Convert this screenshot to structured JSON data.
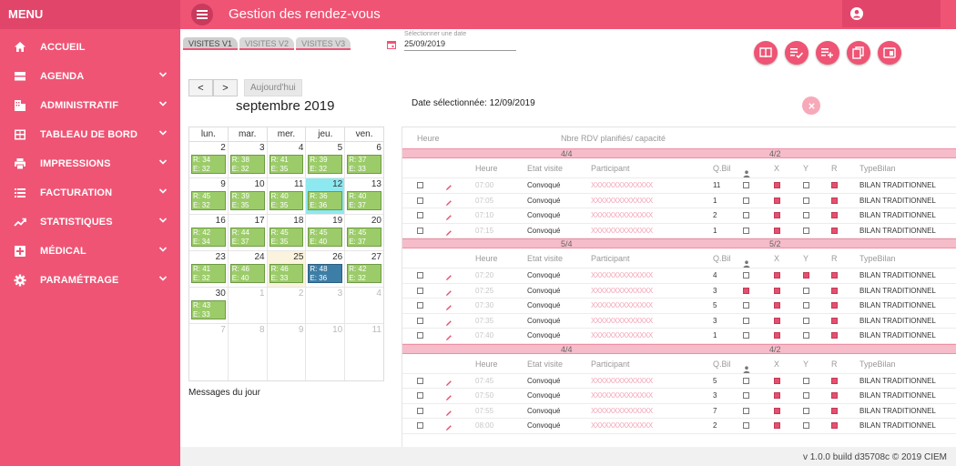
{
  "sidebar": {
    "menu_label": "MENU",
    "items": [
      {
        "label": "ACCUEIL",
        "icon": "home-icon",
        "chevron": false
      },
      {
        "label": "AGENDA",
        "icon": "agenda-icon",
        "chevron": true
      },
      {
        "label": "ADMINISTRATIF",
        "icon": "building-icon",
        "chevron": true
      },
      {
        "label": "TABLEAU DE BORD",
        "icon": "dashboard-icon",
        "chevron": true
      },
      {
        "label": "IMPRESSIONS",
        "icon": "printer-icon",
        "chevron": true
      },
      {
        "label": "FACTURATION",
        "icon": "list-icon",
        "chevron": true
      },
      {
        "label": "STATISTIQUES",
        "icon": "trending-icon",
        "chevron": true
      },
      {
        "label": "MÉDICAL",
        "icon": "medical-icon",
        "chevron": true
      },
      {
        "label": "PARAMÉTRAGE",
        "icon": "gear-icon",
        "chevron": true
      }
    ]
  },
  "header": {
    "title": "Gestion des rendez-vous"
  },
  "tabs": [
    "VISITES V1",
    "VISITES V2",
    "VISITES V3"
  ],
  "date_picker": {
    "label": "Sélectionner une date",
    "value": "25/09/2019"
  },
  "calendar": {
    "prev": "<",
    "next": ">",
    "today_label": "Aujourd'hui",
    "title": "septembre 2019",
    "weekdays": [
      "lun.",
      "mar.",
      "mer.",
      "jeu.",
      "ven."
    ],
    "weeks": [
      [
        {
          "n": "2",
          "r": "R: 34",
          "e": "E: 32"
        },
        {
          "n": "3",
          "r": "R: 38",
          "e": "E: 32"
        },
        {
          "n": "4",
          "r": "R: 41",
          "e": "E: 35"
        },
        {
          "n": "5",
          "r": "R: 39",
          "e": "E: 32"
        },
        {
          "n": "6",
          "r": "R: 37",
          "e": "E: 33"
        }
      ],
      [
        {
          "n": "9",
          "r": "R: 45",
          "e": "E: 32"
        },
        {
          "n": "10",
          "r": "R: 39",
          "e": "E: 35"
        },
        {
          "n": "11",
          "r": "R: 40",
          "e": "E: 35"
        },
        {
          "n": "12",
          "r": "R: 36",
          "e": "E: 36",
          "selected": true
        },
        {
          "n": "13",
          "r": "R: 40",
          "e": "E: 37"
        }
      ],
      [
        {
          "n": "16",
          "r": "R: 42",
          "e": "E: 34"
        },
        {
          "n": "17",
          "r": "R: 44",
          "e": "E: 37"
        },
        {
          "n": "18",
          "r": "R: 45",
          "e": "E: 35"
        },
        {
          "n": "19",
          "r": "R: 45",
          "e": "E: 40"
        },
        {
          "n": "20",
          "r": "R: 45",
          "e": "E: 37"
        }
      ],
      [
        {
          "n": "23",
          "r": "R: 41",
          "e": "E: 32"
        },
        {
          "n": "24",
          "r": "R: 46",
          "e": "E: 40"
        },
        {
          "n": "25",
          "r": "R: 46",
          "e": "E: 33",
          "today": true
        },
        {
          "n": "26",
          "r": "R: 48",
          "e": "E: 36",
          "blue": true
        },
        {
          "n": "27",
          "r": "R: 42",
          "e": "E: 32"
        }
      ],
      [
        {
          "n": "30",
          "r": "R: 43",
          "e": "E: 33"
        },
        {
          "n": "1",
          "other": true
        },
        {
          "n": "2",
          "other": true
        },
        {
          "n": "3",
          "other": true
        },
        {
          "n": "4",
          "other": true
        }
      ],
      [
        {
          "n": "7",
          "other": true
        },
        {
          "n": "8",
          "other": true
        },
        {
          "n": "9",
          "other": true
        },
        {
          "n": "10",
          "other": true
        },
        {
          "n": "11",
          "other": true
        }
      ]
    ]
  },
  "messages_label": "Messages du jour",
  "selected_date_text": "Date sélectionnée: 12/09/2019",
  "panel": {
    "head_heure": "Heure",
    "head_capacity": "Nbre RDV planifiés/ capacité",
    "columns": [
      "Heure",
      "Etat visite",
      "Participant",
      "Q.Bil",
      "X",
      "Y",
      "R",
      "TypeBilan"
    ],
    "groups": [
      {
        "cap1": "4/4",
        "cap2": "4/2",
        "rows": [
          {
            "heure": "07:00",
            "etat": "Convoqué",
            "part": "XXXXXXXXXXXXXX",
            "q": "11",
            "p": false,
            "x": true,
            "y": false,
            "r": true,
            "type": "BILAN TRADITIONNEL"
          },
          {
            "heure": "07:05",
            "etat": "Convoqué",
            "part": "XXXXXXXXXXXXXX",
            "q": "1",
            "p": false,
            "x": true,
            "y": false,
            "r": true,
            "type": "BILAN TRADITIONNEL"
          },
          {
            "heure": "07:10",
            "etat": "Convoqué",
            "part": "XXXXXXXXXXXXXX",
            "q": "2",
            "p": false,
            "x": true,
            "y": false,
            "r": true,
            "type": "BILAN TRADITIONNEL"
          },
          {
            "heure": "07:15",
            "etat": "Convoqué",
            "part": "XXXXXXXXXXXXXX",
            "q": "1",
            "p": false,
            "x": true,
            "y": false,
            "r": true,
            "type": "BILAN TRADITIONNEL"
          }
        ]
      },
      {
        "cap1": "5/4",
        "cap2": "5/2",
        "rows": [
          {
            "heure": "07:20",
            "etat": "Convoqué",
            "part": "XXXXXXXXXXXXXX",
            "q": "4",
            "p": false,
            "x": true,
            "y": true,
            "r": true,
            "type": "BILAN TRADITIONNEL"
          },
          {
            "heure": "07:25",
            "etat": "Convoqué",
            "part": "XXXXXXXXXXXXXX",
            "q": "3",
            "p": true,
            "x": true,
            "y": false,
            "r": true,
            "type": "BILAN TRADITIONNEL"
          },
          {
            "heure": "07:30",
            "etat": "Convoqué",
            "part": "XXXXXXXXXXXXXX",
            "q": "5",
            "p": false,
            "x": true,
            "y": false,
            "r": true,
            "type": "BILAN TRADITIONNEL"
          },
          {
            "heure": "07:35",
            "etat": "Convoqué",
            "part": "XXXXXXXXXXXXXX",
            "q": "3",
            "p": false,
            "x": true,
            "y": false,
            "r": true,
            "type": "BILAN TRADITIONNEL"
          },
          {
            "heure": "07:40",
            "etat": "Convoqué",
            "part": "XXXXXXXXXXXXXX",
            "q": "1",
            "p": false,
            "x": true,
            "y": false,
            "r": true,
            "type": "BILAN TRADITIONNEL"
          }
        ]
      },
      {
        "cap1": "4/4",
        "cap2": "4/2",
        "rows": [
          {
            "heure": "07:45",
            "etat": "Convoqué",
            "part": "XXXXXXXXXXXXXX",
            "q": "5",
            "p": false,
            "x": true,
            "y": false,
            "r": true,
            "type": "BILAN TRADITIONNEL"
          },
          {
            "heure": "07:50",
            "etat": "Convoqué",
            "part": "XXXXXXXXXXXXXX",
            "q": "3",
            "p": false,
            "x": true,
            "y": false,
            "r": true,
            "type": "BILAN TRADITIONNEL"
          },
          {
            "heure": "07:55",
            "etat": "Convoqué",
            "part": "XXXXXXXXXXXXXX",
            "q": "7",
            "p": false,
            "x": true,
            "y": false,
            "r": true,
            "type": "BILAN TRADITIONNEL"
          },
          {
            "heure": "08:00",
            "etat": "Convoqué",
            "part": "XXXXXXXXXXXXXX",
            "q": "2",
            "p": false,
            "x": true,
            "y": false,
            "r": true,
            "type": "BILAN TRADITIONNEL"
          }
        ]
      }
    ]
  },
  "footer": {
    "version": "v 1.0.0 build d35708c © 2019 CIEM"
  },
  "colors": {
    "accent": "#ef5474",
    "event_green": "#9ccc6a",
    "event_blue": "#3d7ea6",
    "selected_day": "#8ee8f0"
  }
}
